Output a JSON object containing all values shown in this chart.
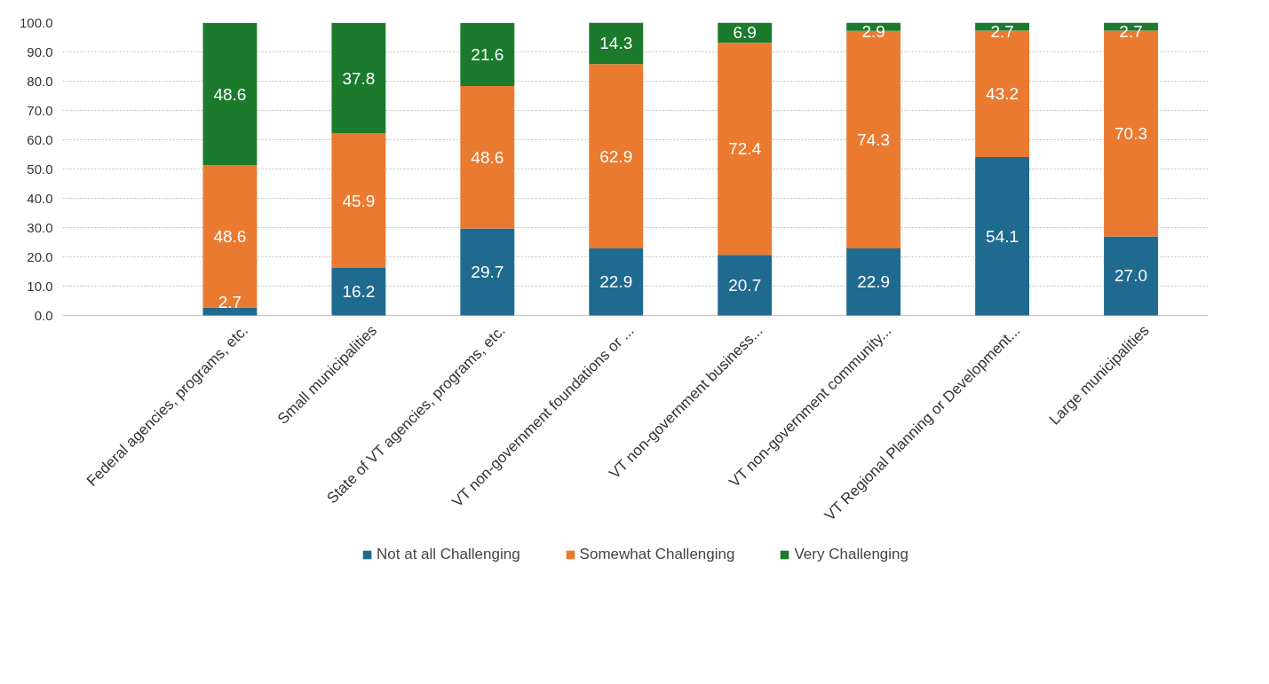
{
  "chart_data": {
    "type": "bar",
    "stacked": true,
    "categories": [
      "Federal agencies, programs, etc.",
      "Small municipalities",
      "State of VT agencies, programs, etc.",
      "VT non-government foundations or ...",
      "VT non-government business...",
      "VT non-government community...",
      "VT Regional Planning or Development...",
      "Large municipalities"
    ],
    "series": [
      {
        "name": "Not at all Challenging",
        "color": "#1f6a8f",
        "values": [
          2.7,
          16.2,
          29.7,
          22.9,
          20.7,
          22.9,
          54.1,
          27.0
        ],
        "value_labels": [
          "2.7",
          "16.2",
          "29.7",
          "22.9",
          "20.7",
          "22.9",
          "54.1",
          "27.0"
        ]
      },
      {
        "name": "Somewhat Challenging",
        "color": "#e97a30",
        "values": [
          48.6,
          45.9,
          48.6,
          62.9,
          72.4,
          74.3,
          43.2,
          70.3
        ],
        "value_labels": [
          "48.6",
          "45.9",
          "48.6",
          "62.9",
          "72.4",
          "74.3",
          "43.2",
          "70.3"
        ]
      },
      {
        "name": "Very Challenging",
        "color": "#1b7a2c",
        "values": [
          48.6,
          37.8,
          21.6,
          14.3,
          6.9,
          2.9,
          2.7,
          2.7
        ],
        "value_labels": [
          "48.6",
          "37.8",
          "21.6",
          "14.3",
          "6.9",
          "2.9",
          "2.7",
          "2.7"
        ]
      }
    ],
    "ylim": [
      0,
      100
    ],
    "yticks": [
      {
        "value": 0,
        "label": "0.0"
      },
      {
        "value": 10,
        "label": "10.0"
      },
      {
        "value": 20,
        "label": "20.0"
      },
      {
        "value": 30,
        "label": "30.0"
      },
      {
        "value": 40,
        "label": "40.0"
      },
      {
        "value": 50,
        "label": "50.0"
      },
      {
        "value": 60,
        "label": "60.0"
      },
      {
        "value": 70,
        "label": "70.0"
      },
      {
        "value": 80,
        "label": "80.0"
      },
      {
        "value": 90,
        "label": "90.0"
      },
      {
        "value": 100,
        "label": "100.0"
      }
    ],
    "grid": "y",
    "legend": "bottom"
  }
}
